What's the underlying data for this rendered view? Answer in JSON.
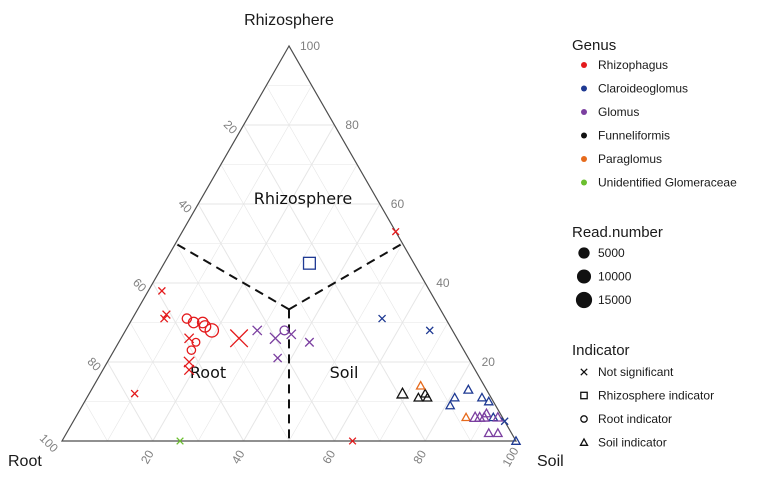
{
  "chart_data": {
    "type": "scatter",
    "subtype": "ternary",
    "grid": true,
    "legend_placement": "right",
    "axes": {
      "top": "Rhizosphere",
      "left": "Root",
      "right": "Soil",
      "ticks": [
        20,
        40,
        60,
        80,
        100
      ]
    },
    "region_labels": [
      "Rhizosphere",
      "Root",
      "Soil"
    ],
    "colors": {
      "Rhizophagus": "#e41a1c",
      "Claroideoglomus": "#1f3a93",
      "Glomus": "#7b3fa0",
      "Funneliformis": "#111111",
      "Paraglomus": "#e66a1c",
      "Unidentified Glomeraceae": "#6bbf2f"
    },
    "legends": {
      "genus": {
        "title": "Genus",
        "items": [
          "Rhizophagus",
          "Claroideoglomus",
          "Glomus",
          "Funneliformis",
          "Paraglomus",
          "Unidentified Glomeraceae"
        ]
      },
      "size": {
        "title": "Read.number",
        "items": [
          5000,
          10000,
          15000
        ]
      },
      "indicator": {
        "title": "Indicator",
        "items": [
          {
            "label": "Not significant",
            "shape": "cross"
          },
          {
            "label": "Rhizosphere indicator",
            "shape": "square"
          },
          {
            "label": "Root indicator",
            "shape": "circle"
          },
          {
            "label": "Soil indicator",
            "shape": "triangle"
          }
        ]
      }
    },
    "points": [
      {
        "rhizosphere": 38,
        "root": 59,
        "soil": 3,
        "genus": "Rhizophagus",
        "indicator": "Not significant",
        "reads": 300
      },
      {
        "rhizosphere": 32,
        "root": 61,
        "soil": 7,
        "genus": "Rhizophagus",
        "indicator": "Not significant",
        "reads": 600
      },
      {
        "rhizosphere": 31,
        "root": 62,
        "soil": 7,
        "genus": "Rhizophagus",
        "indicator": "Not significant",
        "reads": 400
      },
      {
        "rhizosphere": 31,
        "root": 57,
        "soil": 12,
        "genus": "Rhizophagus",
        "indicator": "Root indicator",
        "reads": 1500
      },
      {
        "rhizosphere": 30,
        "root": 56,
        "soil": 14,
        "genus": "Rhizophagus",
        "indicator": "Root indicator",
        "reads": 2500
      },
      {
        "rhizosphere": 29,
        "root": 54,
        "soil": 17,
        "genus": "Rhizophagus",
        "indicator": "Root indicator",
        "reads": 3500
      },
      {
        "rhizosphere": 30,
        "root": 54,
        "soil": 16,
        "genus": "Rhizophagus",
        "indicator": "Root indicator",
        "reads": 2500
      },
      {
        "rhizosphere": 28,
        "root": 53,
        "soil": 19,
        "genus": "Rhizophagus",
        "indicator": "Root indicator",
        "reads": 6000
      },
      {
        "rhizosphere": 26,
        "root": 59,
        "soil": 15,
        "genus": "Rhizophagus",
        "indicator": "Not significant",
        "reads": 1500
      },
      {
        "rhizosphere": 25,
        "root": 58,
        "soil": 17,
        "genus": "Rhizophagus",
        "indicator": "Root indicator",
        "reads": 600
      },
      {
        "rhizosphere": 23,
        "root": 60,
        "soil": 17,
        "genus": "Rhizophagus",
        "indicator": "Root indicator",
        "reads": 900
      },
      {
        "rhizosphere": 26,
        "root": 48,
        "soil": 26,
        "genus": "Rhizophagus",
        "indicator": "Not significant",
        "reads": 14000
      },
      {
        "rhizosphere": 20,
        "root": 62,
        "soil": 18,
        "genus": "Rhizophagus",
        "indicator": "Not significant",
        "reads": 2500
      },
      {
        "rhizosphere": 18,
        "root": 63,
        "soil": 19,
        "genus": "Rhizophagus",
        "indicator": "Not significant",
        "reads": 1800
      },
      {
        "rhizosphere": 12,
        "root": 78,
        "soil": 10,
        "genus": "Rhizophagus",
        "indicator": "Not significant",
        "reads": 300
      },
      {
        "rhizosphere": 0,
        "root": 36,
        "soil": 64,
        "genus": "Rhizophagus",
        "indicator": "Not significant",
        "reads": 200
      },
      {
        "rhizosphere": 45,
        "root": 23,
        "soil": 32,
        "genus": "Claroideoglomus",
        "indicator": "Rhizosphere indicator",
        "reads": 4000
      },
      {
        "rhizosphere": 31,
        "root": 14,
        "soil": 55,
        "genus": "Claroideoglomus",
        "indicator": "Not significant",
        "reads": 300
      },
      {
        "rhizosphere": 28,
        "root": 5,
        "soil": 67,
        "genus": "Claroideoglomus",
        "indicator": "Not significant",
        "reads": 300
      },
      {
        "rhizosphere": 28,
        "root": 43,
        "soil": 29,
        "genus": "Glomus",
        "indicator": "Not significant",
        "reads": 1500
      },
      {
        "rhizosphere": 28,
        "root": 37,
        "soil": 35,
        "genus": "Glomus",
        "indicator": "Root indicator",
        "reads": 1200
      },
      {
        "rhizosphere": 27,
        "root": 36,
        "soil": 37,
        "genus": "Glomus",
        "indicator": "Not significant",
        "reads": 1500
      },
      {
        "rhizosphere": 26,
        "root": 40,
        "soil": 34,
        "genus": "Glomus",
        "indicator": "Not significant",
        "reads": 3000
      },
      {
        "rhizosphere": 25,
        "root": 33,
        "soil": 42,
        "genus": "Glomus",
        "indicator": "Not significant",
        "reads": 1000
      },
      {
        "rhizosphere": 21,
        "root": 42,
        "soil": 37,
        "genus": "Glomus",
        "indicator": "Not significant",
        "reads": 800
      },
      {
        "rhizosphere": 12,
        "root": 19,
        "soil": 69,
        "genus": "Funneliformis",
        "indicator": "Soil indicator",
        "reads": 2000
      },
      {
        "rhizosphere": 12,
        "root": 14,
        "soil": 74,
        "genus": "Funneliformis",
        "indicator": "Soil indicator",
        "reads": 600
      },
      {
        "rhizosphere": 11,
        "root": 16,
        "soil": 73,
        "genus": "Funneliformis",
        "indicator": "Soil indicator",
        "reads": 600
      },
      {
        "rhizosphere": 11,
        "root": 14,
        "soil": 75,
        "genus": "Funneliformis",
        "indicator": "Soil indicator",
        "reads": 600
      },
      {
        "rhizosphere": 14,
        "root": 14,
        "soil": 72,
        "genus": "Paraglomus",
        "indicator": "Soil indicator",
        "reads": 500
      },
      {
        "rhizosphere": 11,
        "root": 8,
        "soil": 81,
        "genus": "Claroideoglomus",
        "indicator": "Soil indicator",
        "reads": 500
      },
      {
        "rhizosphere": 9,
        "root": 10,
        "soil": 81,
        "genus": "Claroideoglomus",
        "indicator": "Soil indicator",
        "reads": 500
      },
      {
        "rhizosphere": 13,
        "root": 4,
        "soil": 83,
        "genus": "Claroideoglomus",
        "indicator": "Soil indicator",
        "reads": 700
      },
      {
        "rhizosphere": 11,
        "root": 2,
        "soil": 87,
        "genus": "Claroideoglomus",
        "indicator": "Soil indicator",
        "reads": 500
      },
      {
        "rhizosphere": 10,
        "root": 1,
        "soil": 89,
        "genus": "Claroideoglomus",
        "indicator": "Soil indicator",
        "reads": 500
      },
      {
        "rhizosphere": 6,
        "root": 2,
        "soil": 92,
        "genus": "Claroideoglomus",
        "indicator": "Soil indicator",
        "reads": 500
      },
      {
        "rhizosphere": 0,
        "root": 0,
        "soil": 100,
        "genus": "Claroideoglomus",
        "indicator": "Soil indicator",
        "reads": 500
      },
      {
        "rhizosphere": 6,
        "root": 8,
        "soil": 86,
        "genus": "Paraglomus",
        "indicator": "Soil indicator",
        "reads": 400
      },
      {
        "rhizosphere": 6,
        "root": 6,
        "soil": 88,
        "genus": "Glomus",
        "indicator": "Soil indicator",
        "reads": 1500
      },
      {
        "rhizosphere": 6,
        "root": 5,
        "soil": 89,
        "genus": "Glomus",
        "indicator": "Soil indicator",
        "reads": 1200
      },
      {
        "rhizosphere": 6,
        "root": 4,
        "soil": 90,
        "genus": "Glomus",
        "indicator": "Soil indicator",
        "reads": 1000
      },
      {
        "rhizosphere": 6,
        "root": 1,
        "soil": 93,
        "genus": "Glomus",
        "indicator": "Soil indicator",
        "reads": 900
      },
      {
        "rhizosphere": 2,
        "root": 5,
        "soil": 93,
        "genus": "Glomus",
        "indicator": "Soil indicator",
        "reads": 600
      },
      {
        "rhizosphere": 2,
        "root": 3,
        "soil": 95,
        "genus": "Glomus",
        "indicator": "Soil indicator",
        "reads": 600
      },
      {
        "rhizosphere": 7,
        "root": 3,
        "soil": 90,
        "genus": "Glomus",
        "indicator": "Soil indicator",
        "reads": 600
      },
      {
        "rhizosphere": 5,
        "root": 0,
        "soil": 95,
        "genus": "Claroideoglomus",
        "indicator": "Not significant",
        "reads": 300
      },
      {
        "rhizosphere": 53,
        "root": 0,
        "soil": 47,
        "genus": "Rhizophagus",
        "indicator": "Not significant",
        "reads": 200
      },
      {
        "rhizosphere": 0,
        "root": 74,
        "soil": 26,
        "genus": "Unidentified Glomeraceae",
        "indicator": "Not significant",
        "reads": 200
      }
    ]
  }
}
